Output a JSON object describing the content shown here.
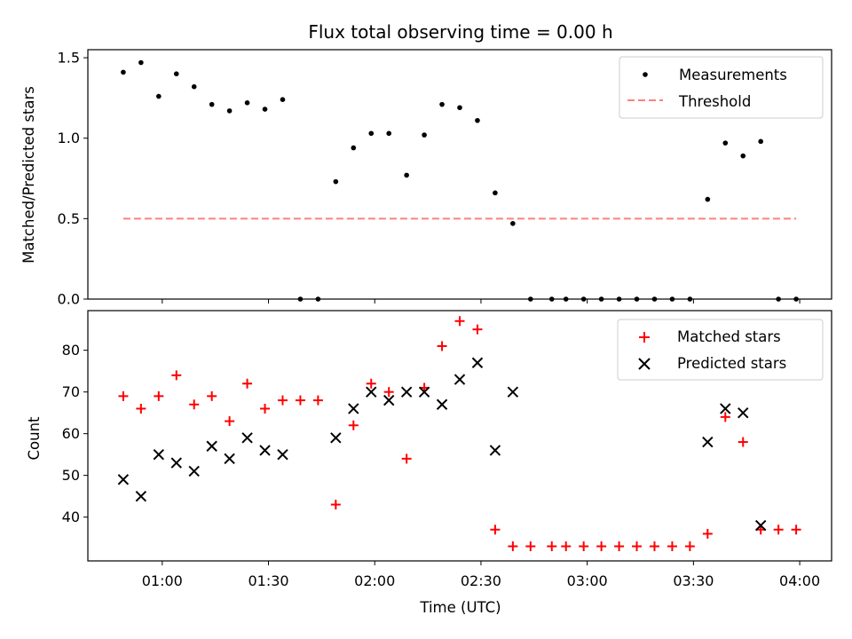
{
  "title": "Flux total observing time = 0.00 h",
  "xlabel": "Time (UTC)",
  "x_tick_labels": [
    "01:00",
    "01:30",
    "02:00",
    "02:30",
    "03:00",
    "03:30",
    "04:00"
  ],
  "colors": {
    "matched": "#ff0000",
    "predicted": "#000000",
    "measurements": "#000000",
    "threshold": "#ff7f7f"
  },
  "chart_data": [
    {
      "type": "scatter",
      "ylabel": "Matched/Predicted stars",
      "ylim": [
        0,
        1.55
      ],
      "yticks": [
        "0.0",
        "0.5",
        "1.0",
        "1.5"
      ],
      "xlim": [
        "00:39",
        "04:09"
      ],
      "legend": "top-right",
      "series": [
        {
          "name": "Measurements",
          "marker": "dot",
          "x": [
            "00:49",
            "00:54",
            "00:59",
            "01:04",
            "01:09",
            "01:14",
            "01:19",
            "01:24",
            "01:29",
            "01:34",
            "01:39",
            "01:44",
            "01:49",
            "01:54",
            "01:59",
            "02:04",
            "02:09",
            "02:14",
            "02:19",
            "02:24",
            "02:29",
            "02:34",
            "02:39",
            "02:44",
            "02:50",
            "02:54",
            "02:59",
            "03:04",
            "03:09",
            "03:14",
            "03:19",
            "03:24",
            "03:29",
            "03:34",
            "03:39",
            "03:44",
            "03:49",
            "03:54",
            "03:59"
          ],
          "y": [
            1.41,
            1.47,
            1.26,
            1.4,
            1.32,
            1.21,
            1.17,
            1.22,
            1.18,
            1.24,
            0.0,
            0.0,
            0.73,
            0.94,
            1.03,
            1.03,
            0.77,
            1.02,
            1.21,
            1.19,
            1.11,
            0.66,
            0.47,
            0.0,
            0.0,
            0.0,
            0.0,
            0.0,
            0.0,
            0.0,
            0.0,
            0.0,
            0.0,
            0.62,
            0.97,
            0.89,
            0.98,
            0.0,
            0.0
          ]
        },
        {
          "name": "Threshold",
          "marker": "dashed-line",
          "x": [
            "00:49",
            "03:59"
          ],
          "y": [
            0.5,
            0.5
          ]
        }
      ]
    },
    {
      "type": "scatter",
      "ylabel": "Count",
      "ylim": [
        29.5,
        89.5
      ],
      "yticks": [
        "40",
        "50",
        "60",
        "70",
        "80"
      ],
      "xlim": [
        "00:39",
        "04:09"
      ],
      "legend": "top-right",
      "series": [
        {
          "name": "Matched stars",
          "marker": "plus",
          "x": [
            "00:49",
            "00:54",
            "00:59",
            "01:04",
            "01:09",
            "01:14",
            "01:19",
            "01:24",
            "01:29",
            "01:34",
            "01:39",
            "01:44",
            "01:49",
            "01:54",
            "01:59",
            "02:04",
            "02:09",
            "02:14",
            "02:19",
            "02:24",
            "02:29",
            "02:34",
            "02:39",
            "02:44",
            "02:50",
            "02:54",
            "02:59",
            "03:04",
            "03:09",
            "03:14",
            "03:19",
            "03:24",
            "03:29",
            "03:34",
            "03:39",
            "03:44",
            "03:49",
            "03:54",
            "03:59"
          ],
          "y": [
            69,
            66,
            69,
            74,
            67,
            69,
            63,
            72,
            66,
            68,
            68,
            68,
            43,
            62,
            72,
            70,
            54,
            71,
            81,
            87,
            85,
            37,
            33,
            33,
            33,
            33,
            33,
            33,
            33,
            33,
            33,
            33,
            33,
            36,
            64,
            58,
            37,
            37,
            37
          ]
        },
        {
          "name": "Predicted stars",
          "marker": "x",
          "x": [
            "00:49",
            "00:54",
            "00:59",
            "01:04",
            "01:09",
            "01:14",
            "01:19",
            "01:24",
            "01:29",
            "01:34",
            "01:49",
            "01:54",
            "01:59",
            "02:04",
            "02:09",
            "02:14",
            "02:19",
            "02:24",
            "02:29",
            "02:34",
            "02:39",
            "03:34",
            "03:39",
            "03:44",
            "03:49"
          ],
          "y": [
            49,
            45,
            55,
            53,
            51,
            57,
            54,
            59,
            56,
            55,
            59,
            66,
            70,
            68,
            70,
            70,
            67,
            73,
            77,
            56,
            70,
            58,
            66,
            65,
            38
          ]
        }
      ]
    }
  ]
}
